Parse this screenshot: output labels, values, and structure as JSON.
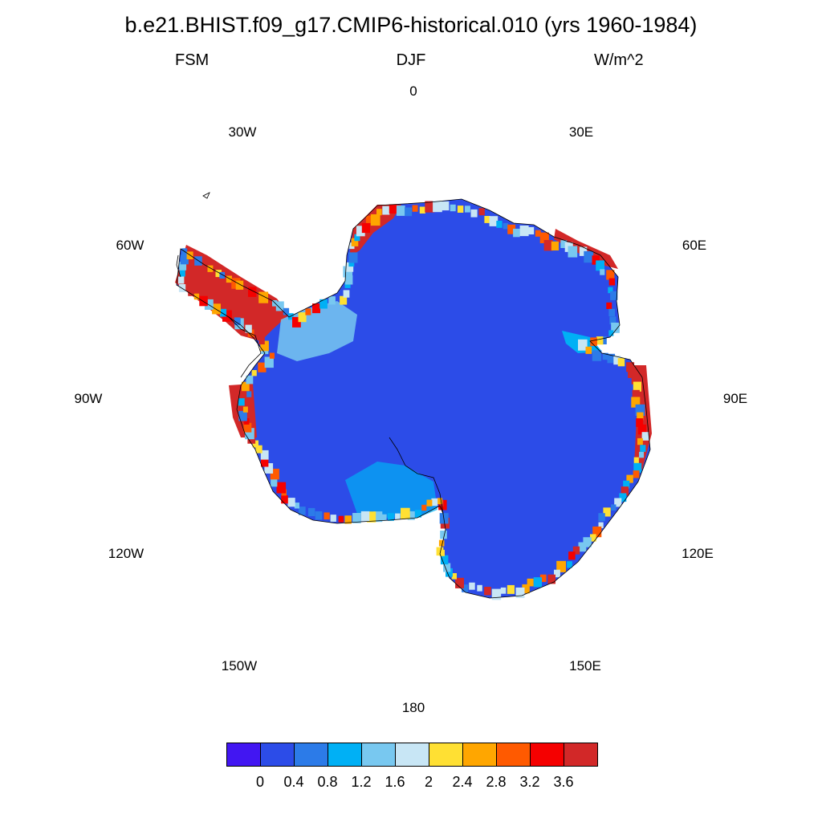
{
  "title": "b.e21.BHIST.f09_g17.CMIP6-historical.010 (yrs 1960-1984)",
  "subtitle": {
    "left": "FSM",
    "center": "DJF",
    "right": "W/m^2"
  },
  "longitude_labels": {
    "lon_0": "0",
    "lon_30e": "30E",
    "lon_60e": "60E",
    "lon_90e": "90E",
    "lon_120e": "120E",
    "lon_150e": "150E",
    "lon_180": "180",
    "lon_150w": "150W",
    "lon_120w": "120W",
    "lon_90w": "90W",
    "lon_60w": "60W",
    "lon_30w": "30W"
  },
  "colorbar": {
    "colors": [
      "#4216f2",
      "#2c4ce8",
      "#2c7be8",
      "#00b0f5",
      "#78c8f0",
      "#c8e6f5",
      "#ffe033",
      "#ffa600",
      "#ff5a00",
      "#f50000",
      "#d22828"
    ],
    "labels": [
      "0",
      "0.4",
      "0.8",
      "1.2",
      "1.6",
      "2",
      "2.4",
      "2.8",
      "3.2",
      "3.6"
    ]
  },
  "map": {
    "projection": "south-polar-stereographic",
    "ice_color": "#2c4ce8",
    "coast_color": "#000000",
    "margin_colors": [
      "#2c7be8",
      "#00b0f5",
      "#78c8f0",
      "#c8e6f5",
      "#ffe033",
      "#ffa600",
      "#ff5a00",
      "#f50000",
      "#d22828"
    ]
  }
}
